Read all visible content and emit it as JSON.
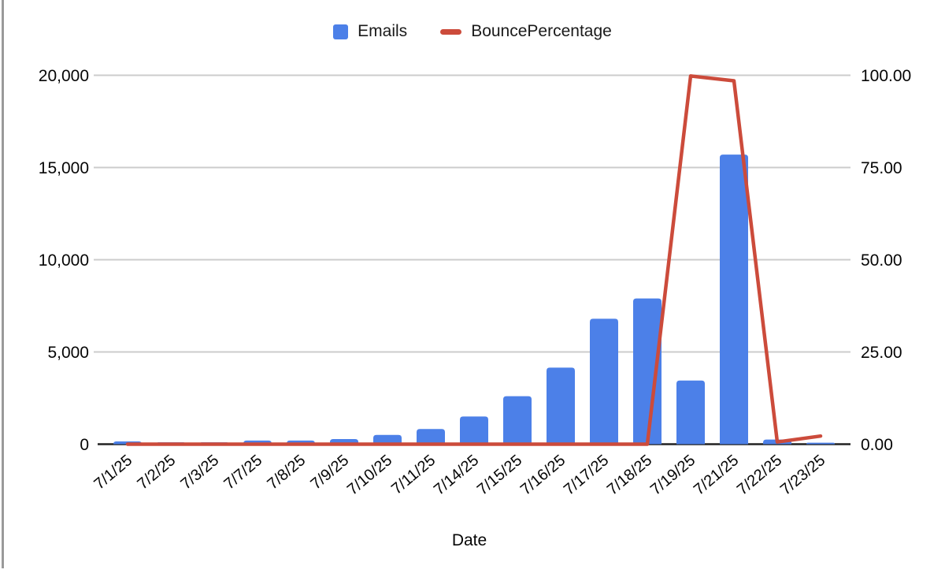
{
  "chart_data": {
    "type": "combo",
    "title": "",
    "xlabel": "Date",
    "grid": true,
    "legend_position": "top",
    "categories": [
      "7/1/25",
      "7/2/25",
      "7/3/25",
      "7/7/25",
      "7/8/25",
      "7/9/25",
      "7/10/25",
      "7/11/25",
      "7/14/25",
      "7/15/25",
      "7/16/25",
      "7/17/25",
      "7/18/25",
      "7/19/25",
      "7/21/25",
      "7/22/25",
      "7/23/25"
    ],
    "series": [
      {
        "name": "Emails",
        "type": "bar",
        "axis": "left",
        "color": "#4c80e8",
        "values": [
          150,
          100,
          100,
          200,
          200,
          280,
          500,
          820,
          1500,
          2600,
          4150,
          6800,
          7900,
          3450,
          15700,
          250,
          80
        ]
      },
      {
        "name": "BouncePercentage",
        "type": "line",
        "axis": "right",
        "color": "#cc4b3b",
        "values": [
          0,
          0,
          0,
          0,
          0,
          0,
          0,
          0,
          0,
          0,
          0,
          0,
          0,
          99.8,
          98.5,
          0.6,
          2.2
        ]
      }
    ],
    "left_axis": {
      "min": 0,
      "max": 20000,
      "ticks": [
        "0",
        "5,000",
        "10,000",
        "15,000",
        "20,000"
      ]
    },
    "right_axis": {
      "min": 0,
      "max": 100,
      "ticks": [
        "0.00",
        "25.00",
        "50.00",
        "75.00",
        "100.00"
      ]
    },
    "colors": {
      "gridline": "#cccccc",
      "baseline": "#222222",
      "text": "#050505"
    }
  }
}
